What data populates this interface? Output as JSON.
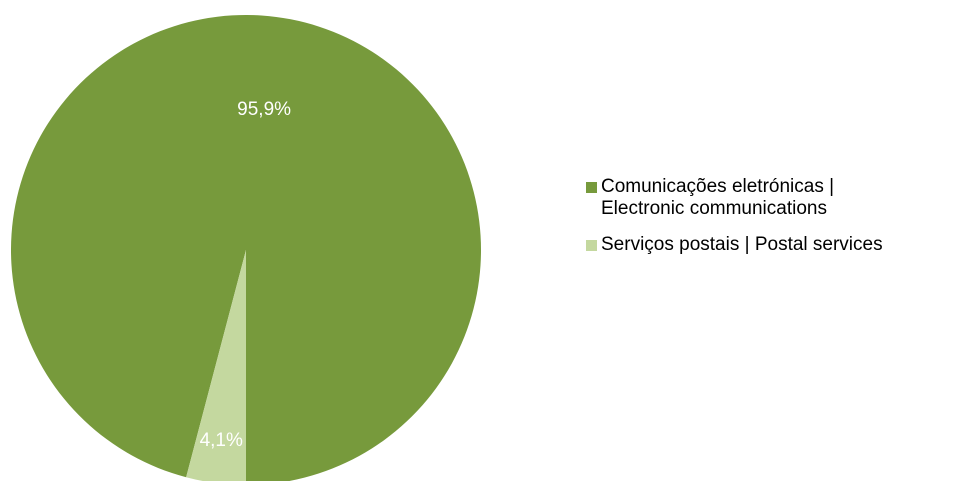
{
  "chart_data": {
    "type": "pie",
    "slices": [
      {
        "label": "Comunicações eletrónicas |\nElectronic communications",
        "value": 95.9,
        "display": "95,9%",
        "color": "#779A3C"
      },
      {
        "label": "Serviços postais | Postal services",
        "value": 4.1,
        "display": "4,1%",
        "color": "#C4D89F"
      }
    ],
    "start_angle_deg": 180,
    "direction": "counterclockwise",
    "legend": "right"
  }
}
